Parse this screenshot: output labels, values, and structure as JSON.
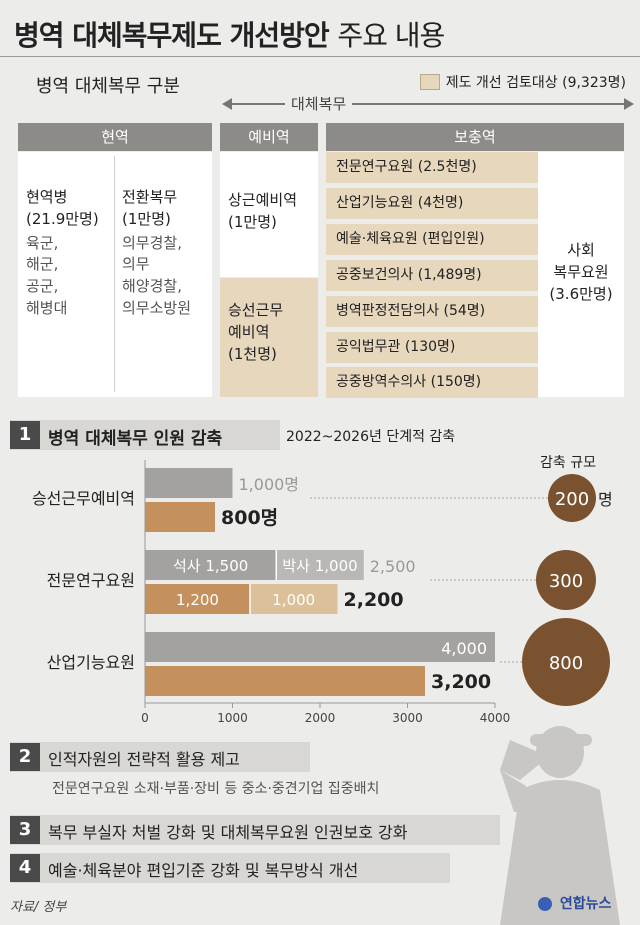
{
  "title_bold": "병역 대체복무제도 개선방안",
  "title_light": "주요 내용",
  "classification": {
    "heading": "병역 대체복무 구분",
    "legend": "제도 개선 검토대상 (9,323명)",
    "arrow_label": "대체복무",
    "active": {
      "header": "현역",
      "col1_title": "현역병",
      "col1_count": "(21.9만명)",
      "col1_items": [
        "육군,",
        "해군,",
        "공군,",
        "해병대"
      ],
      "col2_title": "전환복무",
      "col2_count": "(1만명)",
      "col2_items": [
        "의무경찰,",
        "의무",
        "해양경찰,",
        "의무소방원"
      ]
    },
    "reserve": {
      "header": "예비역",
      "item1_title": "상근예비역",
      "item1_count": "(1만명)",
      "item2_line1": "승선근무",
      "item2_line2": "예비역",
      "item2_count": "(1천명)"
    },
    "supplementary": {
      "header": "보충역",
      "rows": [
        {
          "text": "전문연구요원 (2.5천명)"
        },
        {
          "text": "산업기능요원 (4천명)"
        },
        {
          "text": "예술·체육요원 (편입인원)"
        },
        {
          "text": "공중보건의사 (1,489명)"
        },
        {
          "text": "병역판정전담의사 (54명)"
        },
        {
          "text": "공익법무관 (130명)"
        },
        {
          "text": "공중방역수의사 (150명)"
        }
      ],
      "social_line1": "사회",
      "social_line2": "복무요원",
      "social_count": "(3.6만명)"
    }
  },
  "sections": [
    {
      "num": "1",
      "title": "병역 대체복무 인원 감축",
      "note": "2022~2026년 단계적 감축"
    },
    {
      "num": "2",
      "title": "인적자원의 전략적 활용 제고",
      "note": "전문연구요원 소재·부품·장비 등 중소·중견기업 집중배치"
    },
    {
      "num": "3",
      "title": "복무 부실자 처벌 강화 및 대체복무요원 인권보호 강화",
      "note": ""
    },
    {
      "num": "4",
      "title": "예술·체육분야 편입기준 강화 및 복무방식 개선",
      "note": ""
    }
  ],
  "chart_data": {
    "type": "bar",
    "orientation": "horizontal",
    "categories": [
      "승선근무예비역",
      "전문연구요원",
      "산업기능요원"
    ],
    "series": [
      {
        "name": "",
        "values": [
          1000,
          2500,
          4000
        ],
        "labels": [
          "1,000명",
          "2,500",
          "4,000"
        ],
        "color": "#a3a2a0",
        "segments": [
          [
            {
              "label": "",
              "value": 1000
            }
          ],
          [
            {
              "label": "석사 1,500",
              "value": 1500
            },
            {
              "label": "박사 1,000",
              "value": 1000
            }
          ],
          [
            {
              "label": "",
              "value": 4000
            }
          ]
        ]
      },
      {
        "name": "",
        "values": [
          800,
          2200,
          3200
        ],
        "labels": [
          "800명",
          "2,200",
          "3,200"
        ],
        "color": "#c4915e",
        "segments": [
          [
            {
              "label": "",
              "value": 800
            }
          ],
          [
            {
              "label": "1,200",
              "value": 1200
            },
            {
              "label": "1,000",
              "value": 1000
            }
          ],
          [
            {
              "label": "",
              "value": 3200
            }
          ]
        ]
      }
    ],
    "reduction": {
      "title": "감축 규모",
      "values": [
        "200",
        "300",
        "800"
      ],
      "unit": "명"
    },
    "xlim": [
      0,
      4000
    ],
    "xticks": [
      "0",
      "1000",
      "2000",
      "3000",
      "4000"
    ],
    "colors": {
      "before": "#a3a2a0",
      "after": "#c4915e",
      "after_light": "#dcc09a",
      "circle": "#7a5230"
    }
  },
  "source": "자료/ 정부",
  "logo": "연합뉴스"
}
